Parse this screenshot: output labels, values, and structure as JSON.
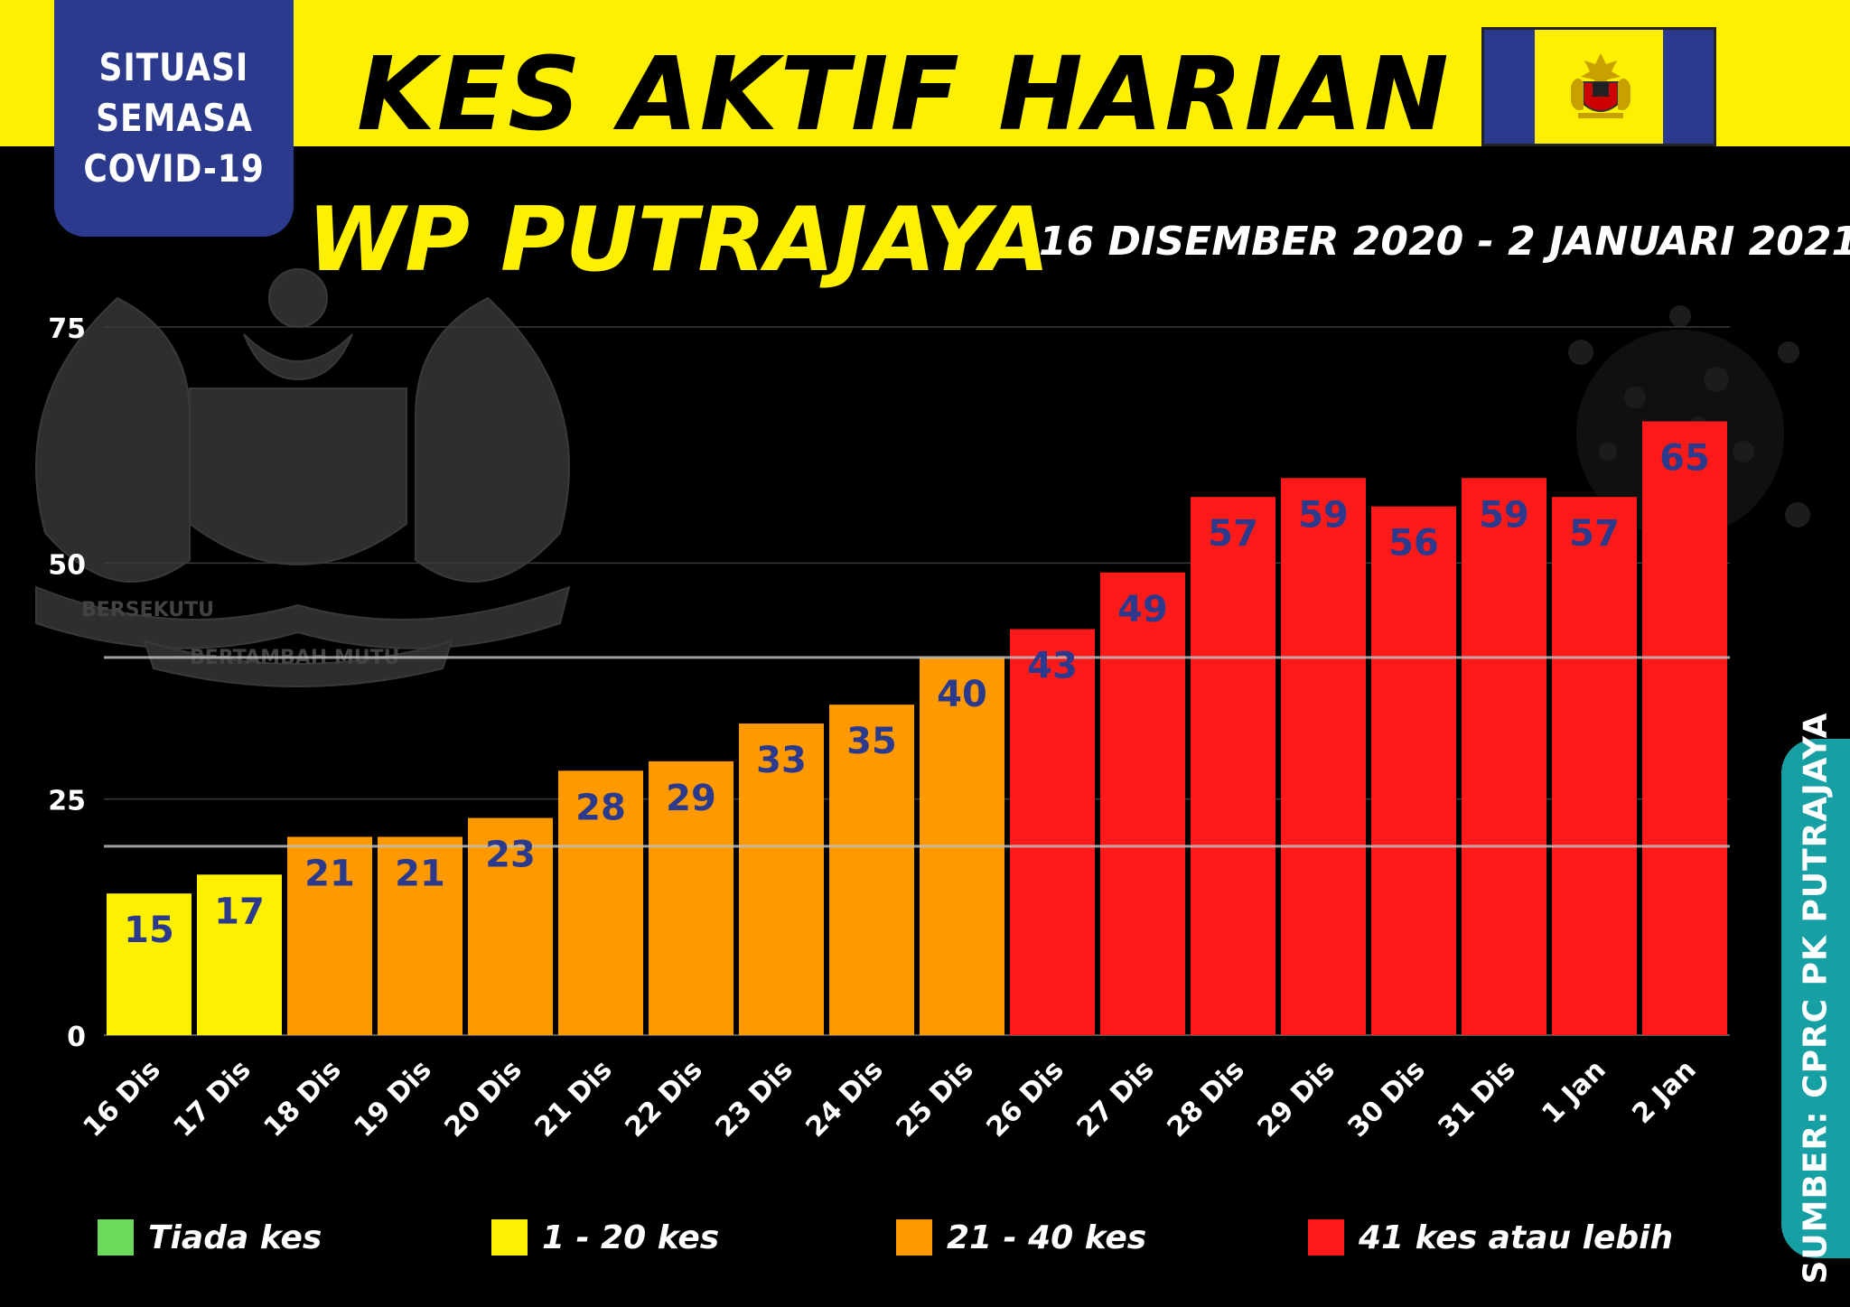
{
  "badge": {
    "lines": [
      "SITUASI",
      "SEMASA",
      "COVID-19"
    ]
  },
  "header": {
    "title": "KES AKTIF HARIAN",
    "subtitle": "WP PUTRAJAYA",
    "date_range": "16 DISEMBER 2020 - 2 JANUARI 2021"
  },
  "emblem": {
    "motto_left": "BERSEKUTU",
    "motto_bottom": "BERTAMBAH MUTU"
  },
  "colors": {
    "background": "#000000",
    "banner": "#fdf000",
    "badge": "#2b3a8c",
    "none": "#6cd85c",
    "low": "#fdf000",
    "mid": "#ff9900",
    "high": "#ff1a1a",
    "value_label": "#2b3a8c",
    "source_tab": "#17a0a4"
  },
  "chart_data": {
    "type": "bar",
    "categories": [
      "16 Dis",
      "17 Dis",
      "18 Dis",
      "19 Dis",
      "20 Dis",
      "21 Dis",
      "22 Dis",
      "23 Dis",
      "24 Dis",
      "25 Dis",
      "26 Dis",
      "27 Dis",
      "28 Dis",
      "29 Dis",
      "30 Dis",
      "31 Dis",
      "1 Jan",
      "2 Jan"
    ],
    "values": [
      15,
      17,
      21,
      21,
      23,
      28,
      29,
      33,
      35,
      40,
      43,
      49,
      57,
      59,
      56,
      59,
      57,
      65
    ],
    "ylim": [
      0,
      75
    ],
    "yticks": [
      0,
      25,
      50,
      75
    ],
    "grid": true,
    "reference_lines": [
      20,
      40
    ],
    "color_bins": [
      {
        "range": [
          0,
          0
        ],
        "color_key": "none"
      },
      {
        "range": [
          1,
          20
        ],
        "color_key": "low"
      },
      {
        "range": [
          21,
          40
        ],
        "color_key": "mid"
      },
      {
        "range": [
          41,
          1000
        ],
        "color_key": "high"
      }
    ]
  },
  "legend": [
    {
      "label": "Tiada kes",
      "color_key": "none"
    },
    {
      "label": "1 - 20 kes",
      "color_key": "low"
    },
    {
      "label": "21 - 40 kes",
      "color_key": "mid"
    },
    {
      "label": "41 kes atau lebih",
      "color_key": "high"
    }
  ],
  "source": "SUMBER: CPRC PK PUTRAJAYA"
}
